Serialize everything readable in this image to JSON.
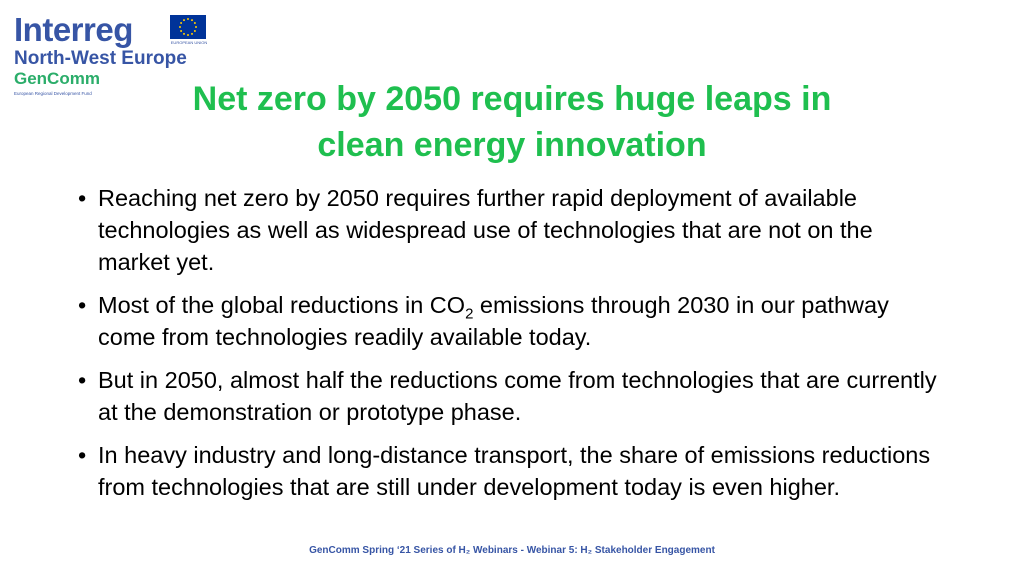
{
  "logo": {
    "program": "Interreg",
    "region": "North-West Europe",
    "project": "GenComm",
    "fund": "European Regional Development Fund",
    "eu_caption": "EUROPEAN UNION",
    "flag_colors": {
      "background": "#003399",
      "stars": "#ffcc00"
    }
  },
  "slide": {
    "title_line1": "Net zero by 2050 requires huge leaps in",
    "title_line2": "clean energy innovation",
    "bullet_symbol": "•",
    "bullets": {
      "b1": "Reaching net zero by 2050 requires further rapid deployment of available technologies as well as widespread use of technologies that are not on the market yet.",
      "b2_pre": "Most of the global reductions in CO",
      "b2_sub": "2",
      "b2_post": " emissions through 2030 in our pathway come from technologies readily available today.",
      "b3": "But in 2050, almost half the reductions come from technologies that are currently at the demonstration or prototype phase.",
      "b4": "In heavy industry and long-distance transport, the share of emissions reductions from technologies that are still under development today is even higher."
    }
  },
  "footer": {
    "text": "GenComm Spring ‘21 Series of H₂ Webinars - Webinar 5: H₂ Stakeholder Engagement"
  },
  "colors": {
    "title": "#1fbf4f",
    "logo_blue": "#3755a5",
    "logo_green": "#2bad6a",
    "footer": "#3755a5"
  }
}
